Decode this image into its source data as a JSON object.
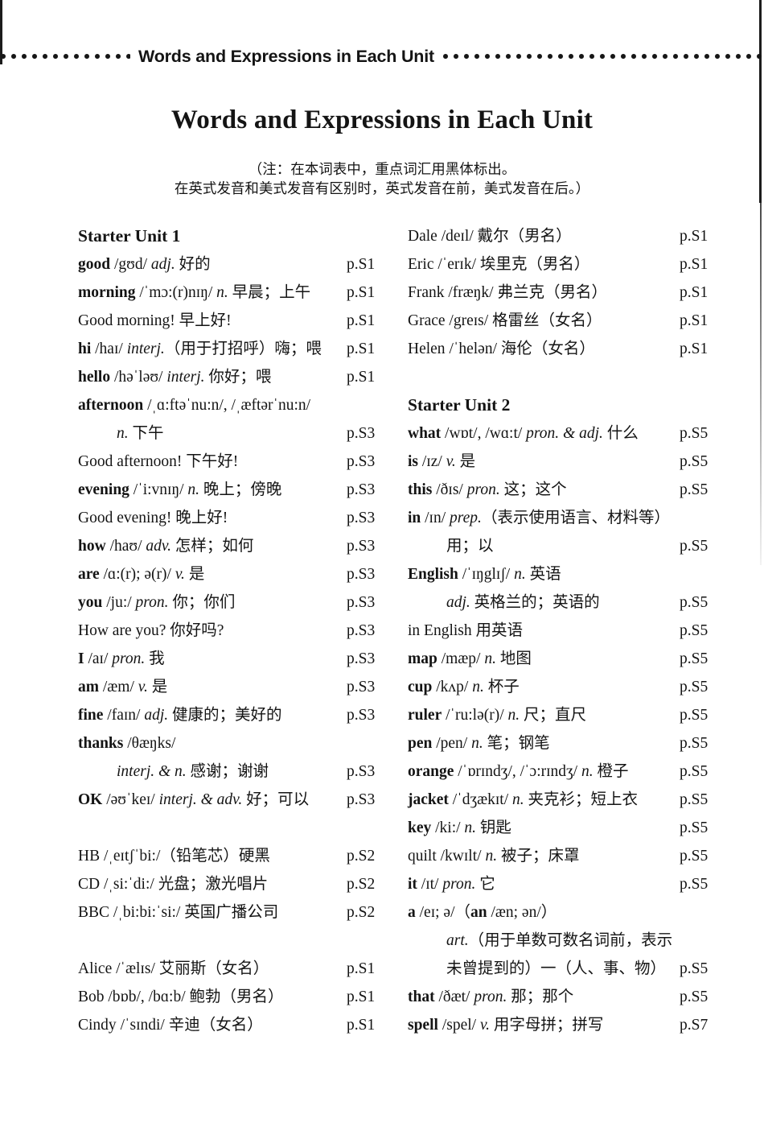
{
  "running_header": {
    "title": "Words and Expressions in Each Unit"
  },
  "page_title": "Words and Expressions in Each Unit",
  "note": {
    "line1": "（注：在本词表中，重点词汇用黑体标出。",
    "line2": "在英式发音和美式发音有区别时，英式发音在前，美式发音在后。）"
  },
  "columns": {
    "left": [
      {
        "type": "heading",
        "text": "Starter Unit 1"
      },
      {
        "type": "entry",
        "segs": [
          {
            "t": "good",
            "b": 1,
            "r": "w"
          },
          {
            "t": " /gʊd/ ",
            "r": "p"
          },
          {
            "t": "adj.",
            "i": 1,
            "r": "pos"
          },
          {
            "t": " 好的",
            "r": "m"
          }
        ],
        "page": "p.S1"
      },
      {
        "type": "entry",
        "segs": [
          {
            "t": "morning",
            "b": 1,
            "r": "w"
          },
          {
            "t": " /ˈmɔ:(r)nɪŋ/ ",
            "r": "p"
          },
          {
            "t": "n.",
            "i": 1,
            "r": "pos"
          },
          {
            "t": " 早晨；上午",
            "r": "m"
          }
        ],
        "page": "p.S1"
      },
      {
        "type": "entry",
        "segs": [
          {
            "t": "Good morning! 早上好!",
            "r": "phr"
          }
        ],
        "page": "p.S1"
      },
      {
        "type": "entry",
        "segs": [
          {
            "t": "hi",
            "b": 1,
            "r": "w"
          },
          {
            "t": " /haɪ/ ",
            "r": "p"
          },
          {
            "t": "interj.",
            "i": 1,
            "r": "pos"
          },
          {
            "t": "（用于打招呼）嗨；喂",
            "r": "m"
          }
        ],
        "page": "p.S1"
      },
      {
        "type": "entry",
        "segs": [
          {
            "t": "hello",
            "b": 1,
            "r": "w"
          },
          {
            "t": " /həˈləʊ/ ",
            "r": "p"
          },
          {
            "t": "interj.",
            "i": 1,
            "r": "pos"
          },
          {
            "t": " 你好；喂",
            "r": "m"
          }
        ],
        "page": "p.S1"
      },
      {
        "type": "entry",
        "segs": [
          {
            "t": "afternoon",
            "b": 1,
            "r": "w"
          },
          {
            "t": " /ˌɑ:ftəˈnu:n/, /ˌæftərˈnu:n/",
            "r": "p"
          }
        ]
      },
      {
        "type": "entry",
        "indent": 1,
        "segs": [
          {
            "t": "n.",
            "i": 1,
            "r": "pos"
          },
          {
            "t": " 下午",
            "r": "m"
          }
        ],
        "page": "p.S3"
      },
      {
        "type": "entry",
        "segs": [
          {
            "t": "Good afternoon! 下午好!",
            "r": "phr"
          }
        ],
        "page": "p.S3"
      },
      {
        "type": "entry",
        "segs": [
          {
            "t": "evening",
            "b": 1,
            "r": "w"
          },
          {
            "t": " /ˈi:vnɪŋ/ ",
            "r": "p"
          },
          {
            "t": "n.",
            "i": 1,
            "r": "pos"
          },
          {
            "t": " 晚上；傍晚",
            "r": "m"
          }
        ],
        "page": "p.S3"
      },
      {
        "type": "entry",
        "segs": [
          {
            "t": "Good evening! 晚上好!",
            "r": "phr"
          }
        ],
        "page": "p.S3"
      },
      {
        "type": "entry",
        "segs": [
          {
            "t": "how",
            "b": 1,
            "r": "w"
          },
          {
            "t": " /haʊ/ ",
            "r": "p"
          },
          {
            "t": "adv.",
            "i": 1,
            "r": "pos"
          },
          {
            "t": " 怎样；如何",
            "r": "m"
          }
        ],
        "page": "p.S3"
      },
      {
        "type": "entry",
        "segs": [
          {
            "t": "are",
            "b": 1,
            "r": "w"
          },
          {
            "t": " /ɑ:(r); ə(r)/ ",
            "r": "p"
          },
          {
            "t": "v.",
            "i": 1,
            "r": "pos"
          },
          {
            "t": " 是",
            "r": "m"
          }
        ],
        "page": "p.S3"
      },
      {
        "type": "entry",
        "segs": [
          {
            "t": "you",
            "b": 1,
            "r": "w"
          },
          {
            "t": " /ju:/ ",
            "r": "p"
          },
          {
            "t": "pron.",
            "i": 1,
            "r": "pos"
          },
          {
            "t": " 你；你们",
            "r": "m"
          }
        ],
        "page": "p.S3"
      },
      {
        "type": "entry",
        "segs": [
          {
            "t": "How are you? 你好吗?",
            "r": "phr"
          }
        ],
        "page": "p.S3"
      },
      {
        "type": "entry",
        "segs": [
          {
            "t": "I",
            "b": 1,
            "r": "w"
          },
          {
            "t": " /aɪ/ ",
            "r": "p"
          },
          {
            "t": "pron.",
            "i": 1,
            "r": "pos"
          },
          {
            "t": " 我",
            "r": "m"
          }
        ],
        "page": "p.S3"
      },
      {
        "type": "entry",
        "segs": [
          {
            "t": "am",
            "b": 1,
            "r": "w"
          },
          {
            "t": " /æm/ ",
            "r": "p"
          },
          {
            "t": "v.",
            "i": 1,
            "r": "pos"
          },
          {
            "t": " 是",
            "r": "m"
          }
        ],
        "page": "p.S3"
      },
      {
        "type": "entry",
        "segs": [
          {
            "t": "fine",
            "b": 1,
            "r": "w"
          },
          {
            "t": " /faɪn/ ",
            "r": "p"
          },
          {
            "t": "adj.",
            "i": 1,
            "r": "pos"
          },
          {
            "t": " 健康的；美好的",
            "r": "m"
          }
        ],
        "page": "p.S3"
      },
      {
        "type": "entry",
        "segs": [
          {
            "t": "thanks",
            "b": 1,
            "r": "w"
          },
          {
            "t": " /θæŋks/",
            "r": "p"
          }
        ]
      },
      {
        "type": "entry",
        "indent": 1,
        "segs": [
          {
            "t": "interj. & n.",
            "i": 1,
            "r": "pos"
          },
          {
            "t": " 感谢；谢谢",
            "r": "m"
          }
        ],
        "page": "p.S3"
      },
      {
        "type": "entry",
        "segs": [
          {
            "t": "OK",
            "b": 1,
            "r": "w"
          },
          {
            "t": " /əʊˈkeɪ/ ",
            "r": "p"
          },
          {
            "t": "interj. & adv.",
            "i": 1,
            "r": "pos"
          },
          {
            "t": " 好；可以",
            "r": "m"
          }
        ],
        "page": "p.S3"
      },
      {
        "type": "blank"
      },
      {
        "type": "entry",
        "segs": [
          {
            "t": "HB",
            "r": "w"
          },
          {
            "t": " /ˌeɪtʃˈbi:/",
            "r": "p"
          },
          {
            "t": "（铅笔芯）硬黑",
            "r": "m"
          }
        ],
        "page": "p.S2"
      },
      {
        "type": "entry",
        "segs": [
          {
            "t": "CD",
            "r": "w"
          },
          {
            "t": " /ˌsi:ˈdi:/ ",
            "r": "p"
          },
          {
            "t": "光盘；激光唱片",
            "r": "m"
          }
        ],
        "page": "p.S2"
      },
      {
        "type": "entry",
        "segs": [
          {
            "t": "BBC",
            "r": "w"
          },
          {
            "t": " /ˌbi:bi:ˈsi:/ ",
            "r": "p"
          },
          {
            "t": "英国广播公司",
            "r": "m"
          }
        ],
        "page": "p.S2"
      },
      {
        "type": "blank"
      },
      {
        "type": "entry",
        "segs": [
          {
            "t": "Alice",
            "r": "w"
          },
          {
            "t": " /ˈælɪs/ ",
            "r": "p"
          },
          {
            "t": "艾丽斯（女名）",
            "r": "m"
          }
        ],
        "page": "p.S1"
      },
      {
        "type": "entry",
        "segs": [
          {
            "t": "Bob",
            "r": "w"
          },
          {
            "t": " /bɒb/, /bɑ:b/ ",
            "r": "p"
          },
          {
            "t": "鲍勃（男名）",
            "r": "m"
          }
        ],
        "page": "p.S1"
      },
      {
        "type": "entry",
        "segs": [
          {
            "t": "Cindy",
            "r": "w"
          },
          {
            "t": " /ˈsɪndi/ ",
            "r": "p"
          },
          {
            "t": "辛迪（女名）",
            "r": "m"
          }
        ],
        "page": "p.S1"
      }
    ],
    "right": [
      {
        "type": "entry",
        "segs": [
          {
            "t": "Dale",
            "r": "w"
          },
          {
            "t": " /deɪl/ ",
            "r": "p"
          },
          {
            "t": "戴尔（男名）",
            "r": "m"
          }
        ],
        "page": "p.S1"
      },
      {
        "type": "entry",
        "segs": [
          {
            "t": "Eric",
            "r": "w"
          },
          {
            "t": " /ˈerɪk/ ",
            "r": "p"
          },
          {
            "t": "埃里克（男名）",
            "r": "m"
          }
        ],
        "page": "p.S1"
      },
      {
        "type": "entry",
        "segs": [
          {
            "t": "Frank",
            "r": "w"
          },
          {
            "t": " /fræŋk/ ",
            "r": "p"
          },
          {
            "t": "弗兰克（男名）",
            "r": "m"
          }
        ],
        "page": "p.S1"
      },
      {
        "type": "entry",
        "segs": [
          {
            "t": "Grace",
            "r": "w"
          },
          {
            "t": " /greɪs/ ",
            "r": "p"
          },
          {
            "t": "格雷丝（女名）",
            "r": "m"
          }
        ],
        "page": "p.S1"
      },
      {
        "type": "entry",
        "segs": [
          {
            "t": "Helen",
            "r": "w"
          },
          {
            "t": " /ˈhelən/ ",
            "r": "p"
          },
          {
            "t": "海伦（女名）",
            "r": "m"
          }
        ],
        "page": "p.S1"
      },
      {
        "type": "blank"
      },
      {
        "type": "heading",
        "text": "Starter Unit 2"
      },
      {
        "type": "entry",
        "segs": [
          {
            "t": "what",
            "b": 1,
            "r": "w"
          },
          {
            "t": " /wɒt/, /wɑ:t/ ",
            "r": "p"
          },
          {
            "t": "pron. & adj.",
            "i": 1,
            "r": "pos"
          },
          {
            "t": " 什么",
            "r": "m"
          }
        ],
        "page": "p.S5"
      },
      {
        "type": "entry",
        "segs": [
          {
            "t": "is",
            "b": 1,
            "r": "w"
          },
          {
            "t": " /ɪz/ ",
            "r": "p"
          },
          {
            "t": "v.",
            "i": 1,
            "r": "pos"
          },
          {
            "t": " 是",
            "r": "m"
          }
        ],
        "page": "p.S5"
      },
      {
        "type": "entry",
        "segs": [
          {
            "t": "this",
            "b": 1,
            "r": "w"
          },
          {
            "t": " /ðɪs/ ",
            "r": "p"
          },
          {
            "t": "pron.",
            "i": 1,
            "r": "pos"
          },
          {
            "t": " 这；这个",
            "r": "m"
          }
        ],
        "page": "p.S5"
      },
      {
        "type": "entry",
        "segs": [
          {
            "t": "in",
            "b": 1,
            "r": "w"
          },
          {
            "t": " /ɪn/ ",
            "r": "p"
          },
          {
            "t": "prep.",
            "i": 1,
            "r": "pos"
          },
          {
            "t": "（表示使用语言、材料等）",
            "r": "m"
          }
        ]
      },
      {
        "type": "entry",
        "indent": 1,
        "segs": [
          {
            "t": "用；以",
            "r": "m"
          }
        ],
        "page": "p.S5"
      },
      {
        "type": "entry",
        "segs": [
          {
            "t": "English",
            "b": 1,
            "r": "w"
          },
          {
            "t": " /ˈɪŋglɪʃ/ ",
            "r": "p"
          },
          {
            "t": "n.",
            "i": 1,
            "r": "pos"
          },
          {
            "t": " 英语",
            "r": "m"
          }
        ]
      },
      {
        "type": "entry",
        "indent": 1,
        "segs": [
          {
            "t": "adj.",
            "i": 1,
            "r": "pos"
          },
          {
            "t": " 英格兰的；英语的",
            "r": "m"
          }
        ],
        "page": "p.S5"
      },
      {
        "type": "entry",
        "segs": [
          {
            "t": "in English 用英语",
            "r": "phr"
          }
        ],
        "page": "p.S5"
      },
      {
        "type": "entry",
        "segs": [
          {
            "t": "map",
            "b": 1,
            "r": "w"
          },
          {
            "t": " /mæp/ ",
            "r": "p"
          },
          {
            "t": "n.",
            "i": 1,
            "r": "pos"
          },
          {
            "t": " 地图",
            "r": "m"
          }
        ],
        "page": "p.S5"
      },
      {
        "type": "entry",
        "segs": [
          {
            "t": "cup",
            "b": 1,
            "r": "w"
          },
          {
            "t": " /kʌp/ ",
            "r": "p"
          },
          {
            "t": "n.",
            "i": 1,
            "r": "pos"
          },
          {
            "t": " 杯子",
            "r": "m"
          }
        ],
        "page": "p.S5"
      },
      {
        "type": "entry",
        "segs": [
          {
            "t": "ruler",
            "b": 1,
            "r": "w"
          },
          {
            "t": " /ˈru:lə(r)/ ",
            "r": "p"
          },
          {
            "t": "n.",
            "i": 1,
            "r": "pos"
          },
          {
            "t": " 尺；直尺",
            "r": "m"
          }
        ],
        "page": "p.S5"
      },
      {
        "type": "entry",
        "segs": [
          {
            "t": "pen",
            "b": 1,
            "r": "w"
          },
          {
            "t": " /pen/ ",
            "r": "p"
          },
          {
            "t": "n.",
            "i": 1,
            "r": "pos"
          },
          {
            "t": " 笔；钢笔",
            "r": "m"
          }
        ],
        "page": "p.S5"
      },
      {
        "type": "entry",
        "segs": [
          {
            "t": "orange",
            "b": 1,
            "r": "w"
          },
          {
            "t": " /ˈɒrɪndʒ/, /ˈɔ:rɪndʒ/ ",
            "r": "p"
          },
          {
            "t": "n.",
            "i": 1,
            "r": "pos"
          },
          {
            "t": " 橙子",
            "r": "m"
          }
        ],
        "page": "p.S5"
      },
      {
        "type": "entry",
        "segs": [
          {
            "t": "jacket",
            "b": 1,
            "r": "w"
          },
          {
            "t": " /ˈdʒækɪt/ ",
            "r": "p"
          },
          {
            "t": "n.",
            "i": 1,
            "r": "pos"
          },
          {
            "t": " 夹克衫；短上衣",
            "r": "m"
          }
        ],
        "page": "p.S5"
      },
      {
        "type": "entry",
        "segs": [
          {
            "t": "key",
            "b": 1,
            "r": "w"
          },
          {
            "t": " /ki:/ ",
            "r": "p"
          },
          {
            "t": "n.",
            "i": 1,
            "r": "pos"
          },
          {
            "t": " 钥匙",
            "r": "m"
          }
        ],
        "page": "p.S5"
      },
      {
        "type": "entry",
        "segs": [
          {
            "t": "quilt",
            "r": "w"
          },
          {
            "t": " /kwɪlt/ ",
            "r": "p"
          },
          {
            "t": "n.",
            "i": 1,
            "r": "pos"
          },
          {
            "t": " 被子；床罩",
            "r": "m"
          }
        ],
        "page": "p.S5"
      },
      {
        "type": "entry",
        "segs": [
          {
            "t": "it",
            "b": 1,
            "r": "w"
          },
          {
            "t": " /ɪt/ ",
            "r": "p"
          },
          {
            "t": "pron.",
            "i": 1,
            "r": "pos"
          },
          {
            "t": " 它",
            "r": "m"
          }
        ],
        "page": "p.S5"
      },
      {
        "type": "entry",
        "segs": [
          {
            "t": "a",
            "b": 1,
            "r": "w"
          },
          {
            "t": " /eɪ; ə/（",
            "r": "p"
          },
          {
            "t": "an",
            "b": 1,
            "r": "w"
          },
          {
            "t": " /æn; ən/）",
            "r": "p"
          }
        ]
      },
      {
        "type": "entry",
        "indent": 1,
        "segs": [
          {
            "t": "art.",
            "i": 1,
            "r": "pos"
          },
          {
            "t": "（用于单数可数名词前，表示",
            "r": "m"
          }
        ]
      },
      {
        "type": "entry",
        "indent": 1,
        "segs": [
          {
            "t": "未曾提到的）一（人、事、物）",
            "r": "m"
          }
        ],
        "page": "p.S5"
      },
      {
        "type": "entry",
        "segs": [
          {
            "t": "that",
            "b": 1,
            "r": "w"
          },
          {
            "t": " /ðæt/ ",
            "r": "p"
          },
          {
            "t": "pron.",
            "i": 1,
            "r": "pos"
          },
          {
            "t": " 那；那个",
            "r": "m"
          }
        ],
        "page": "p.S5"
      },
      {
        "type": "entry",
        "segs": [
          {
            "t": "spell",
            "b": 1,
            "r": "w"
          },
          {
            "t": " /spel/ ",
            "r": "p"
          },
          {
            "t": "v.",
            "i": 1,
            "r": "pos"
          },
          {
            "t": " 用字母拼；拼写",
            "r": "m"
          }
        ],
        "page": "p.S7"
      }
    ]
  }
}
